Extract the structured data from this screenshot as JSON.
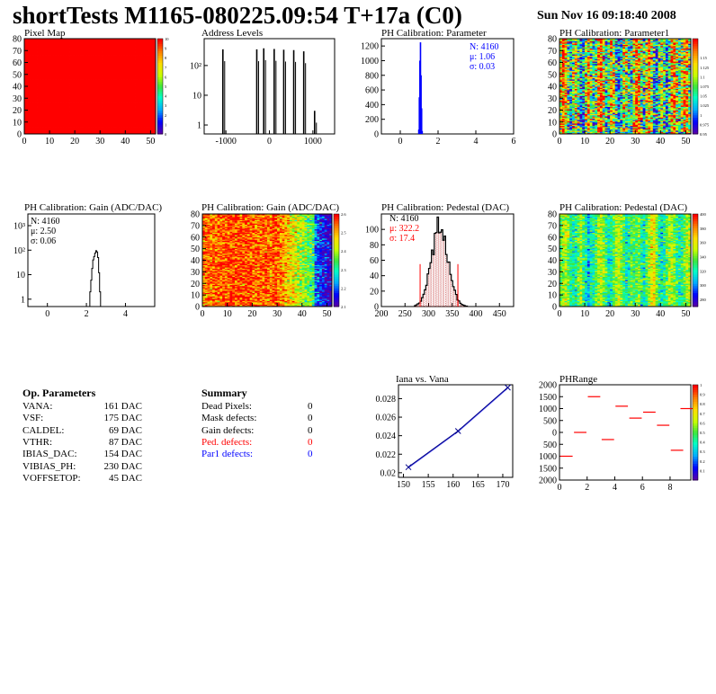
{
  "header": {
    "title": "shortTests M1165-080225.09:54 T+17a (C0)",
    "timestamp": "Sun Nov 16 09:18:40 2008"
  },
  "colors": {
    "stats_blue": "#0000ff",
    "stats_red": "#ff0000",
    "hist_line": "#000000",
    "fit_line": "#ff0000",
    "graph_line": "#00008b"
  },
  "chart_data": [
    {
      "id": "pixel-map",
      "type": "heatmap",
      "title": "Pixel Map",
      "xlim": [
        0,
        52
      ],
      "ylim": [
        0,
        80
      ],
      "xticks": [
        0,
        10,
        20,
        30,
        40,
        50
      ],
      "yticks": [
        0,
        10,
        20,
        30,
        40,
        50,
        60,
        70,
        80
      ],
      "zlim": [
        0,
        10
      ],
      "zticks": [
        0,
        1,
        2,
        3,
        4,
        5,
        6,
        7,
        8,
        9,
        10
      ],
      "uniform_value": 10
    },
    {
      "id": "address-levels",
      "type": "bar",
      "title": "Address Levels",
      "xlim": [
        -1500,
        1500
      ],
      "ylim": [
        0.5,
        800
      ],
      "log_y": true,
      "xticks": [
        -1000,
        0,
        1000
      ],
      "yticks": [
        1,
        10,
        100
      ],
      "ytick_labels": [
        "1",
        "10",
        "10²"
      ],
      "peaks": [
        {
          "x": -1070,
          "y": 350
        },
        {
          "x": -290,
          "y": 350
        },
        {
          "x": -130,
          "y": 380
        },
        {
          "x": 110,
          "y": 360
        },
        {
          "x": 330,
          "y": 340
        },
        {
          "x": 560,
          "y": 330
        },
        {
          "x": 790,
          "y": 300
        },
        {
          "x": 1040,
          "y": 3
        }
      ]
    },
    {
      "id": "ph-cal-parameter",
      "type": "bar",
      "title": "PH Calibration: Parameter",
      "xlim": [
        -1,
        6
      ],
      "ylim": [
        0,
        1300
      ],
      "xticks": [
        0,
        2,
        4,
        6
      ],
      "yticks": [
        0,
        200,
        400,
        600,
        800,
        1000,
        1200
      ],
      "bins": [
        {
          "x": 0.98,
          "y": 60
        },
        {
          "x": 1.01,
          "y": 500
        },
        {
          "x": 1.04,
          "y": 1000
        },
        {
          "x": 1.07,
          "y": 1250
        },
        {
          "x": 1.1,
          "y": 800
        },
        {
          "x": 1.13,
          "y": 350
        },
        {
          "x": 1.16,
          "y": 40
        }
      ],
      "stats": {
        "n": "N: 4160",
        "mean": "μ: 1.06",
        "sigma": "σ: 0.03"
      }
    },
    {
      "id": "ph-cal-parameter1",
      "type": "heatmap",
      "title": "PH Calibration: Parameter1",
      "xlim": [
        0,
        52
      ],
      "ylim": [
        0,
        80
      ],
      "xticks": [
        0,
        10,
        20,
        30,
        40,
        50
      ],
      "yticks": [
        0,
        10,
        20,
        30,
        40,
        50,
        60,
        70,
        80
      ],
      "zlim": [
        0.95,
        1.2
      ],
      "zticks": [
        0.95,
        0.975,
        1,
        1.025,
        1.05,
        1.075,
        1.1,
        1.125,
        1.15
      ],
      "ztick_labels": [
        "0.95",
        "0.975",
        "1",
        "1.025",
        "1.05",
        "1.075",
        "1.1",
        "1.125",
        "1.15"
      ]
    },
    {
      "id": "ph-cal-gain-hist",
      "type": "bar",
      "title": "PH Calibration: Gain (ADC/DAC)",
      "xlim": [
        -1,
        5.5
      ],
      "ylim": [
        0.5,
        3000
      ],
      "log_y": true,
      "xticks": [
        0,
        2,
        4
      ],
      "yticks": [
        1,
        10,
        100,
        1000
      ],
      "ytick_labels": [
        "1",
        "10",
        "10²",
        "10³"
      ],
      "bins": [
        {
          "x": 2.2,
          "y": 2
        },
        {
          "x": 2.25,
          "y": 6
        },
        {
          "x": 2.3,
          "y": 18
        },
        {
          "x": 2.35,
          "y": 40
        },
        {
          "x": 2.4,
          "y": 55
        },
        {
          "x": 2.45,
          "y": 75
        },
        {
          "x": 2.5,
          "y": 95
        },
        {
          "x": 2.55,
          "y": 85
        },
        {
          "x": 2.6,
          "y": 50
        },
        {
          "x": 2.65,
          "y": 12
        },
        {
          "x": 2.7,
          "y": 2
        }
      ],
      "stats": {
        "n": "N: 4160",
        "mean": "μ: 2.50",
        "sigma": "σ: 0.06"
      }
    },
    {
      "id": "ph-cal-gain-map",
      "type": "heatmap",
      "title": "PH Calibration: Gain (ADC/DAC)",
      "xlim": [
        0,
        52
      ],
      "ylim": [
        0,
        80
      ],
      "xticks": [
        0,
        10,
        20,
        30,
        40,
        50
      ],
      "yticks": [
        0,
        10,
        20,
        30,
        40,
        50,
        60,
        70,
        80
      ],
      "zlim": [
        2.1,
        2.6
      ],
      "zticks": [
        2.1,
        2.2,
        2.3,
        2.4,
        2.5,
        2.6
      ]
    },
    {
      "id": "ph-cal-pedestal-hist",
      "type": "bar",
      "title": "PH Calibration: Pedestal (DAC)",
      "xlim": [
        200,
        480
      ],
      "ylim": [
        0,
        120
      ],
      "xticks": [
        200,
        250,
        300,
        350,
        400,
        450
      ],
      "yticks": [
        0,
        20,
        40,
        60,
        80,
        100
      ],
      "mean": 322.2,
      "sigma": 17.4,
      "peak": 105,
      "cut_lines": [
        282,
        362
      ],
      "stats": {
        "n": "N: 4160",
        "mean": "μ: 322.2",
        "sigma": "σ: 17.4"
      }
    },
    {
      "id": "ph-cal-pedestal-map",
      "type": "heatmap",
      "title": "PH Calibration: Pedestal (DAC)",
      "xlim": [
        0,
        52
      ],
      "ylim": [
        0,
        80
      ],
      "xticks": [
        0,
        10,
        20,
        30,
        40,
        50
      ],
      "yticks": [
        0,
        10,
        20,
        30,
        40,
        50,
        60,
        70,
        80
      ],
      "zlim": [
        270,
        400
      ],
      "zticks": [
        280,
        300,
        320,
        340,
        360,
        380,
        400
      ]
    },
    {
      "id": "iana-vs-vana",
      "type": "line",
      "title": "Iana vs. Vana",
      "xlim": [
        149,
        172
      ],
      "ylim": [
        0.0195,
        0.0295
      ],
      "xticks": [
        150,
        155,
        160,
        165,
        170
      ],
      "yticks": [
        0.02,
        0.022,
        0.024,
        0.026,
        0.028
      ],
      "x": [
        151,
        161,
        171
      ],
      "y": [
        0.0206,
        0.0245,
        0.0292
      ]
    },
    {
      "id": "phrange",
      "type": "scatter",
      "title": "PHRange",
      "xlim": [
        0,
        9.5
      ],
      "ylim": [
        -2000,
        2000
      ],
      "xticks": [
        0,
        2,
        4,
        6,
        8
      ],
      "yticks": [
        -2000,
        -1500,
        -1000,
        -500,
        0,
        500,
        1000,
        1500,
        2000
      ],
      "ytick_labels": [
        "2000",
        "1500",
        "1000",
        "500",
        "0",
        "500",
        "1000",
        "1500",
        "2000"
      ],
      "zlim": [
        0,
        1
      ],
      "zticks": [
        0.1,
        0.2,
        0.3,
        0.4,
        0.5,
        0.6,
        0.7,
        0.8,
        0.9,
        1
      ],
      "points": [
        {
          "x": 0.5,
          "y": -1000
        },
        {
          "x": 1.5,
          "y": 0
        },
        {
          "x": 2.5,
          "y": 1500
        },
        {
          "x": 3.5,
          "y": -300
        },
        {
          "x": 4.5,
          "y": 1100
        },
        {
          "x": 5.5,
          "y": 600
        },
        {
          "x": 6.5,
          "y": 850
        },
        {
          "x": 7.5,
          "y": 300
        },
        {
          "x": 8.5,
          "y": -750
        },
        {
          "x": 9.2,
          "y": 1000
        }
      ]
    }
  ],
  "op_parameters": {
    "title": "Op. Parameters",
    "rows": [
      {
        "name": "VANA:",
        "value": "161 DAC"
      },
      {
        "name": "VSF:",
        "value": "175 DAC"
      },
      {
        "name": "CALDEL:",
        "value": "69 DAC"
      },
      {
        "name": "VTHR:",
        "value": "87 DAC"
      },
      {
        "name": "IBIAS_DAC:",
        "value": "154 DAC"
      },
      {
        "name": "VIBIAS_PH:",
        "value": "230 DAC"
      },
      {
        "name": "VOFFSETOP:",
        "value": "45 DAC"
      }
    ]
  },
  "summary": {
    "title": "Summary",
    "rows": [
      {
        "name": "Dead Pixels:",
        "value": "0",
        "color": "#000000"
      },
      {
        "name": "Mask defects:",
        "value": "0",
        "color": "#000000"
      },
      {
        "name": "Gain defects:",
        "value": "0",
        "color": "#000000"
      },
      {
        "name": "Ped. defects:",
        "value": "0",
        "color": "#ff0000"
      },
      {
        "name": "Par1 defects:",
        "value": "0",
        "color": "#0000ff"
      }
    ]
  }
}
